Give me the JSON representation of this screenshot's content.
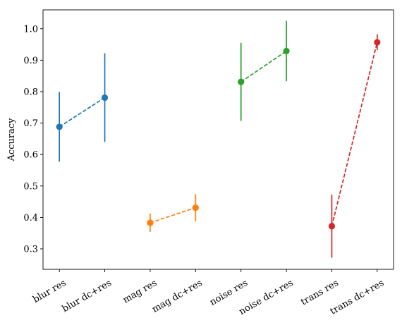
{
  "chart_data": {
    "type": "scatter",
    "title": "",
    "xlabel": "",
    "ylabel": "Accuracy",
    "categories": [
      "blur res",
      "blur dc+res",
      "mag res",
      "mag dc+res",
      "noise res",
      "noise dc+res",
      "trans res",
      "trans dc+res"
    ],
    "ylim": [
      0.235,
      1.06
    ],
    "yticks": [
      "0.3",
      "0.4",
      "0.5",
      "0.6",
      "0.7",
      "0.8",
      "0.9",
      "1.0"
    ],
    "grid": false,
    "legend": "none",
    "series": [
      {
        "color": "#1f77b4",
        "categories": [
          "blur res",
          "blur dc+res"
        ],
        "values": [
          0.688,
          0.781
        ],
        "errors": [
          0.111,
          0.141
        ],
        "line_style": "dashed"
      },
      {
        "color": "#ff7f0e",
        "categories": [
          "mag res",
          "mag dc+res"
        ],
        "values": [
          0.383,
          0.431
        ],
        "errors": [
          0.029,
          0.043
        ],
        "line_style": "dashed"
      },
      {
        "color": "#2ca02c",
        "categories": [
          "noise res",
          "noise dc+res"
        ],
        "values": [
          0.831,
          0.929
        ],
        "errors": [
          0.124,
          0.096
        ],
        "line_style": "dashed"
      },
      {
        "color": "#d62728",
        "categories": [
          "trans res",
          "trans dc+res"
        ],
        "values": [
          0.372,
          0.957
        ],
        "errors": [
          0.1,
          0.025
        ],
        "line_style": "dashed"
      }
    ]
  }
}
